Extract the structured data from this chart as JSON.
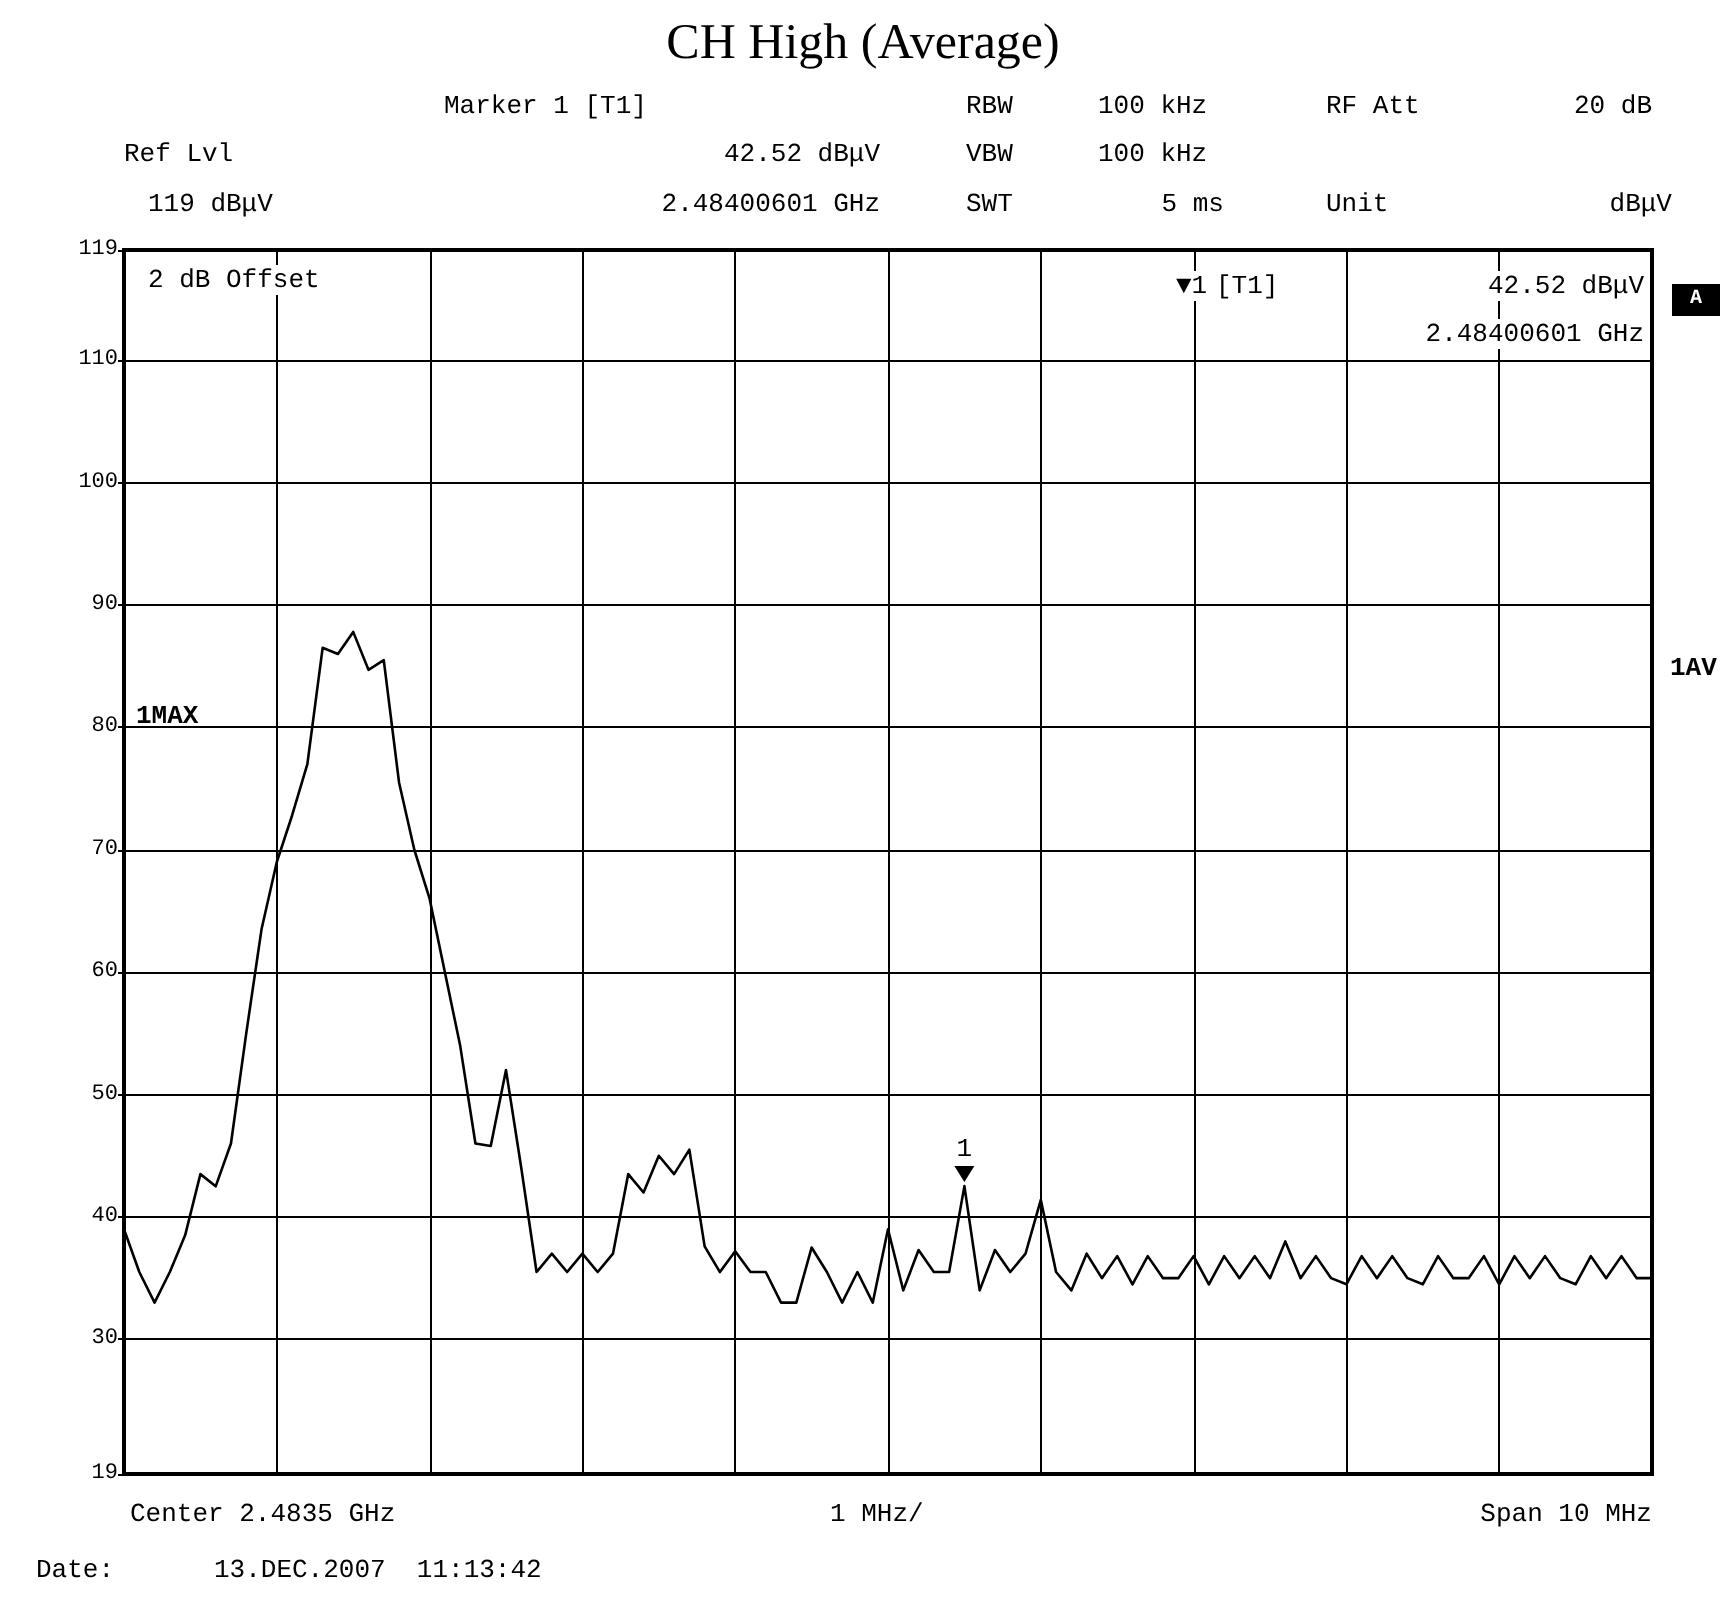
{
  "chart_data": {
    "type": "line",
    "title": "CH High (Average)",
    "categories": [
      null,
      null,
      null,
      null,
      null,
      null,
      null,
      null,
      null,
      null,
      null,
      null,
      null,
      null,
      null,
      null,
      null,
      null,
      null,
      null,
      null,
      null,
      null,
      null,
      null,
      null,
      null,
      null,
      null,
      null,
      null,
      null,
      null,
      null,
      null,
      null,
      null,
      null,
      null,
      null,
      null,
      null,
      null,
      null,
      null,
      null,
      null,
      null,
      null,
      null,
      null,
      null,
      null,
      null,
      null,
      null,
      null,
      null,
      null,
      null,
      null,
      null,
      null,
      null,
      null,
      null,
      null,
      null,
      null,
      null,
      null,
      null,
      null,
      null,
      null,
      null,
      null,
      null,
      null,
      null,
      null,
      null,
      null,
      null,
      null,
      null,
      null,
      null,
      null,
      null,
      null,
      null,
      null,
      null,
      null,
      null,
      null,
      null,
      null,
      null,
      null
    ],
    "series": [
      {
        "color": "#000000",
        "values": [
          39,
          35.5,
          33,
          35.5,
          38.5,
          43.5,
          42.5,
          46,
          55,
          63.5,
          69,
          72.8,
          77,
          86.5,
          86,
          87.8,
          84.7,
          85.5,
          75.5,
          70,
          66,
          60,
          54,
          46,
          45.8,
          52,
          44,
          35.5,
          37,
          35.5,
          37,
          35.5,
          37,
          43.5,
          42,
          45,
          43.5,
          45.5,
          37.6,
          35.5,
          37.2,
          35.5,
          35.5,
          33,
          33,
          37.5,
          35.5,
          33,
          35.5,
          33,
          39,
          34,
          37.3,
          35.5,
          35.5,
          42.52,
          34,
          37.3,
          35.5,
          37,
          41.4,
          35.5,
          34,
          37,
          35,
          36.8,
          34.5,
          36.8,
          35,
          35,
          36.8,
          34.5,
          36.8,
          35,
          36.8,
          35,
          38,
          35,
          36.8,
          35,
          34.5,
          36.8,
          35,
          36.8,
          35,
          34.5,
          36.8,
          35,
          35,
          36.8,
          34.5,
          36.8,
          35,
          36.8,
          35,
          34.5,
          36.8,
          35,
          36.8,
          35,
          35
        ]
      }
    ],
    "ylim": [
      19,
      119
    ],
    "yticks": [
      19,
      30,
      40,
      50,
      60,
      70,
      80,
      90,
      100,
      110,
      119
    ],
    "grid": true,
    "line_style": "solid",
    "tick_labels": "y",
    "annotations": [
      "Marker 1 [T1]",
      "RBW",
      "100 kHz",
      "RF Att",
      "20 dB",
      "Ref Lvl",
      "42.52 dBμV",
      "VBW",
      "100 kHz",
      "119 dBμV",
      "2.48400601 GHz",
      "SWT",
      "5 ms",
      "Unit",
      "dBμV",
      "2 dB Offset",
      "▼1",
      "[T1]",
      "42.52 dBμV",
      "2.48400601 GHz",
      "1MAX",
      "1AV",
      "A",
      "Center 2.4835 GHz",
      "1 MHz/",
      "Span 10 MHz",
      "Date:",
      "13.DEC.2007  11:13:42",
      {
        "text": "1",
        "y": 42.52
      }
    ]
  }
}
